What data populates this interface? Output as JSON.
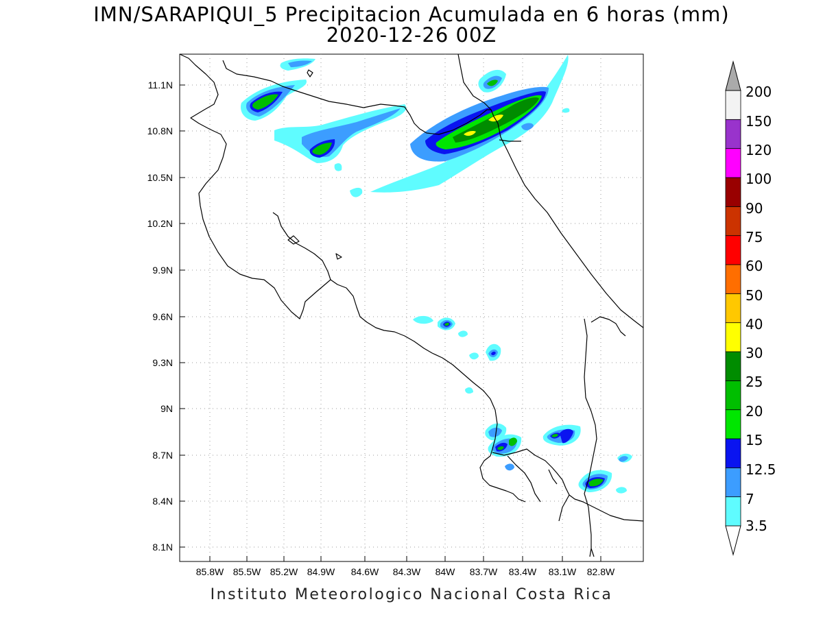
{
  "title": {
    "line1": "IMN/SARAPIQUI_5 Precipitacion Acumulada en 6 horas (mm)",
    "line2": "2020-12-26 00Z"
  },
  "footer": "Instituto Meteorologico Nacional Costa Rica",
  "axes": {
    "lon_ticks": [
      "85.8W",
      "85.5W",
      "85.2W",
      "84.9W",
      "84.6W",
      "84.3W",
      "84W",
      "83.7W",
      "83.4W",
      "83.1W",
      "82.8W"
    ],
    "lat_ticks": [
      "11.1N",
      "10.8N",
      "10.5N",
      "10.2N",
      "9.9N",
      "9.6N",
      "9.3N",
      "9N",
      "8.7N",
      "8.4N",
      "8.1N"
    ],
    "grid": "dotted"
  },
  "colorbar": {
    "levels": [
      "3.5",
      "7",
      "12.5",
      "15",
      "20",
      "25",
      "30",
      "40",
      "50",
      "60",
      "75",
      "90",
      "100",
      "120",
      "150",
      "200"
    ],
    "colors": [
      "#5ffcff",
      "#3c9dff",
      "#0a14f0",
      "#00e600",
      "#00be00",
      "#008c00",
      "#ffff00",
      "#ffc800",
      "#ff6e00",
      "#ff0000",
      "#cc3300",
      "#990000",
      "#ff00ff",
      "#9933cc",
      "#f3f3f3",
      "#aaaaaa"
    ]
  },
  "map": {
    "coastline_color": "#000000",
    "background": "#ffffff"
  }
}
